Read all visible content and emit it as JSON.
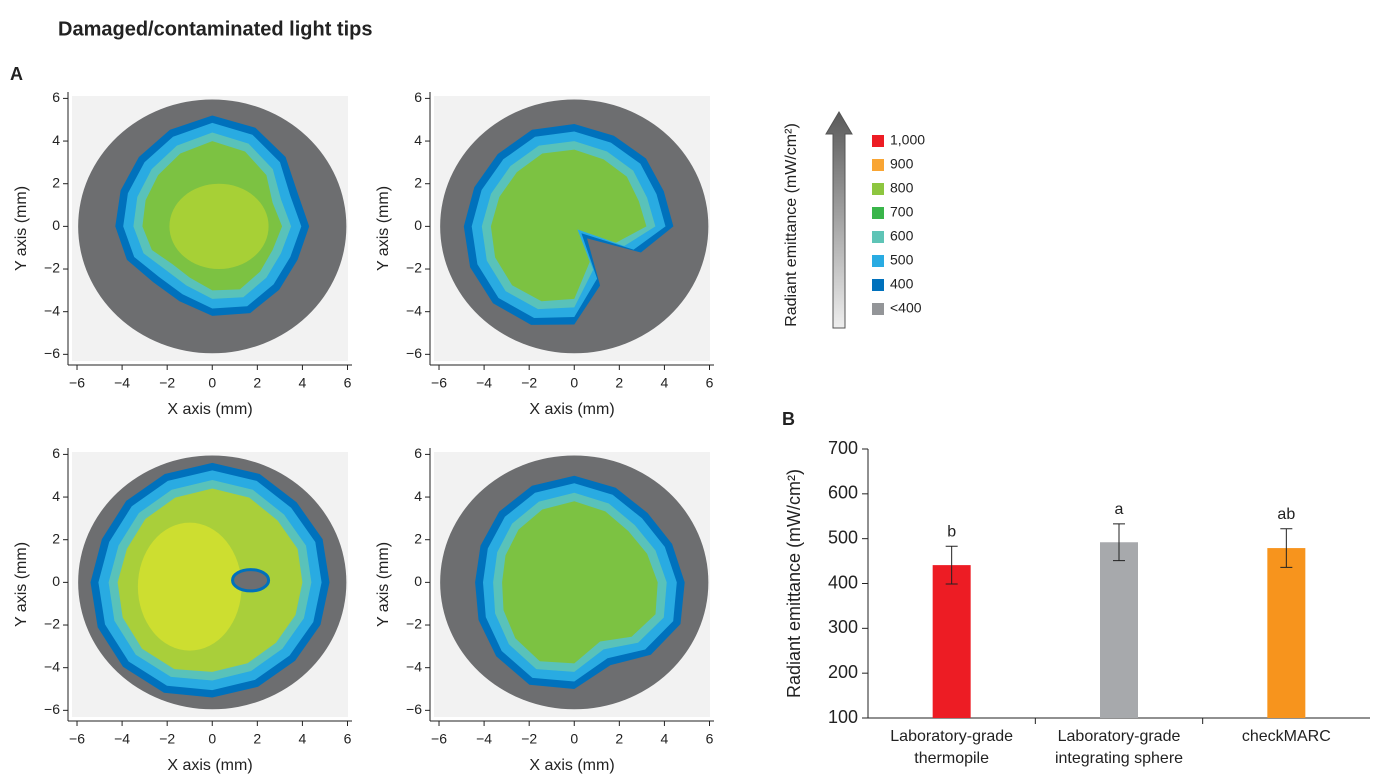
{
  "title": "Damaged/contaminated light tips",
  "panel_labels": [
    "A",
    "B"
  ],
  "colorbar": {
    "label": "Radiant emittance (mW/cm²)",
    "items": [
      {
        "label": "1,000",
        "color": "#ed1c24"
      },
      {
        "label": "900",
        "color": "#f9a533"
      },
      {
        "label": "800",
        "color": "#8dc63f"
      },
      {
        "label": "700",
        "color": "#39b54a"
      },
      {
        "label": "600",
        "color": "#5ec4b6"
      },
      {
        "label": "500",
        "color": "#29abe2"
      },
      {
        "label": "400",
        "color": "#0071bc"
      },
      {
        "label": "<400",
        "color": "#939598"
      }
    ]
  },
  "chart_data": [
    {
      "type": "beam-profile",
      "xlabel": "X axis (mm)",
      "ylabel": "Y axis (mm)",
      "xlim": [
        -6.4,
        6.2
      ],
      "ylim": [
        -6.5,
        6.3
      ],
      "xticks": [
        {
          "value": -6,
          "label": "−6"
        },
        {
          "value": -4,
          "label": "−4"
        },
        {
          "value": -2,
          "label": "−2"
        },
        0,
        2,
        4,
        6
      ],
      "yticks": [
        {
          "value": -6,
          "label": "−6"
        },
        {
          "value": -4,
          "label": "−4"
        },
        {
          "value": -2,
          "label": "−2"
        },
        0,
        2,
        4,
        6
      ]
    },
    {
      "type": "beam-profile",
      "xlabel": "X axis (mm)",
      "ylabel": "Y axis (mm)",
      "xlim": [
        -6.4,
        6.2
      ],
      "ylim": [
        -6.5,
        6.3
      ],
      "xticks": [
        {
          "value": -6,
          "label": "−6"
        },
        {
          "value": -4,
          "label": "−4"
        },
        {
          "value": -2,
          "label": "−2"
        },
        0,
        2,
        4,
        6
      ],
      "yticks": [
        {
          "value": -6,
          "label": "−6"
        },
        {
          "value": -4,
          "label": "−4"
        },
        {
          "value": -2,
          "label": "−2"
        },
        0,
        2,
        4,
        6
      ]
    },
    {
      "type": "beam-profile",
      "xlabel": "X axis (mm)",
      "ylabel": "Y axis (mm)",
      "xlim": [
        -6.4,
        6.2
      ],
      "ylim": [
        -6.5,
        6.3
      ],
      "xticks": [
        {
          "value": -6,
          "label": "−6"
        },
        {
          "value": -4,
          "label": "−4"
        },
        {
          "value": -2,
          "label": "−2"
        },
        0,
        2,
        4,
        6
      ],
      "yticks": [
        {
          "value": -6,
          "label": "−6"
        },
        {
          "value": -4,
          "label": "−4"
        },
        {
          "value": -2,
          "label": "−2"
        },
        0,
        2,
        4,
        6
      ]
    },
    {
      "type": "beam-profile",
      "xlabel": "X axis (mm)",
      "ylabel": "Y axis (mm)",
      "xlim": [
        -6.4,
        6.2
      ],
      "ylim": [
        -6.5,
        6.3
      ],
      "xticks": [
        {
          "value": -6,
          "label": "−6"
        },
        {
          "value": -4,
          "label": "−4"
        },
        {
          "value": -2,
          "label": "−2"
        },
        0,
        2,
        4,
        6
      ],
      "yticks": [
        {
          "value": -6,
          "label": "−6"
        },
        {
          "value": -4,
          "label": "−4"
        },
        {
          "value": -2,
          "label": "−2"
        },
        0,
        2,
        4,
        6
      ]
    },
    {
      "type": "bar",
      "ylabel": "Radiant emittance (mW/cm²)",
      "categories": [
        "Laboratory-grade thermopile",
        "Laboratory-grade integrating sphere",
        "checkMARC"
      ],
      "values": [
        441,
        492,
        479
      ],
      "errors": [
        42,
        41,
        43
      ],
      "annotations": [
        "b",
        "a",
        "ab"
      ],
      "colors": [
        "#ed1c24",
        "#a7a9ac",
        "#f7941d"
      ],
      "ylim": [
        100,
        700
      ],
      "yticks": [
        100,
        200,
        300,
        400,
        500,
        600,
        700
      ]
    }
  ]
}
